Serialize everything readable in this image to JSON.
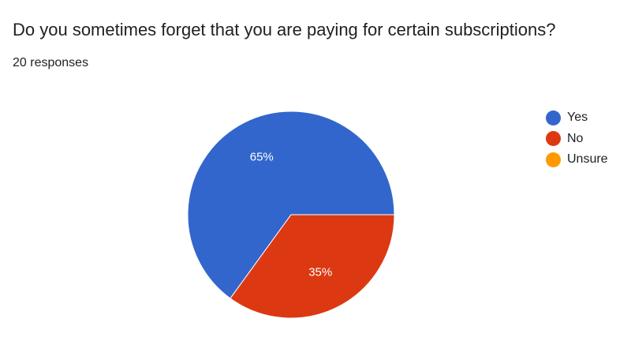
{
  "question": {
    "title": "Do you sometimes forget that you are paying for certain subscriptions?",
    "responses_label": "20 responses"
  },
  "chart_data": {
    "type": "pie",
    "title": "Do you sometimes forget that you are paying for certain subscriptions?",
    "categories": [
      "Yes",
      "No",
      "Unsure"
    ],
    "values": [
      65,
      35,
      0
    ],
    "unit": "%",
    "slice_labels": [
      "65%",
      "35%",
      ""
    ],
    "colors": [
      "#3366cc",
      "#dc3912",
      "#ff9900"
    ],
    "legend_position": "right",
    "start_angle": "3 o'clock",
    "direction": "counterclockwise"
  }
}
